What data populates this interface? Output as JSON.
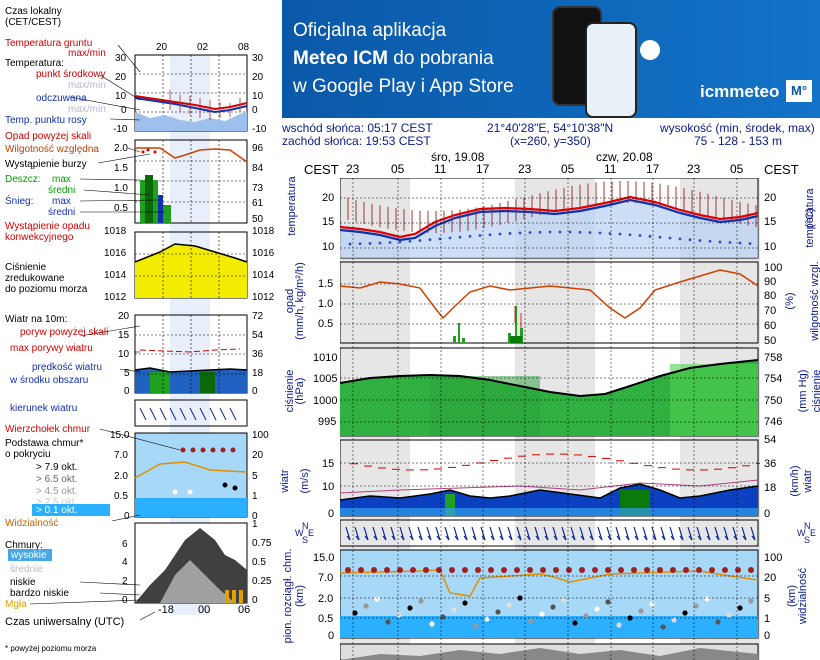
{
  "left": {
    "local_time": "Czas lokalny\n(CET/CEST)",
    "top_ticks": [
      "20",
      "02",
      "08"
    ],
    "soil_temp": "Temperatura gruntu",
    "max_min": "max/min",
    "temperature": "Temperatura:",
    "midpoint": "punkt środkowy",
    "max_min2": "max/min",
    "felt": "odczuwana",
    "max_min3": "max/min",
    "dew": "Temp. punktu rosy",
    "temp_ticks": [
      "30",
      "20",
      "10",
      "0",
      "-10"
    ],
    "precip_above": "Opad powyżej skali",
    "humidity": "Wilgotność względna",
    "storm": "Wystąpienie burzy",
    "rain": "Deszcz:",
    "rain_max": "max",
    "rain_mean": "średni",
    "snow": "Śnieg:",
    "snow_max": "max",
    "snow_mean": "średni",
    "precip_occ1": "Wystąpienie opadu",
    "precip_occ2": "konwekcyjnego",
    "precip_ticks": [
      "2.0",
      "1.5",
      "1.0",
      "0.5",
      "0"
    ],
    "hum_ticks": [
      "96",
      "84",
      "73",
      "61",
      "50"
    ],
    "pressure_lbl1": "Ciśnienie",
    "pressure_lbl2": "zredukowane",
    "pressure_lbl3": "do poziomu morza",
    "press_ticks_l": [
      "1018",
      "1016",
      "1014",
      "1012"
    ],
    "press_ticks_r": [
      "1018",
      "1016",
      "1014",
      "1012"
    ],
    "wind_lbl": "Wiatr na 10m:",
    "gust_above": "poryw powyżej skali",
    "gust_max": "max porywy wiatru",
    "wind_speed1": "prędkość wiatru",
    "wind_speed2": "w środku obszaru",
    "wind_ticks_l": [
      "20",
      "15",
      "10",
      "5",
      "0"
    ],
    "wind_ticks_r": [
      "72",
      "54",
      "36",
      "18",
      "0"
    ],
    "wind_dir": "kierunek wiatru",
    "cloud_top": "Wierzchołek chmur",
    "cloud_base1": "Podstawa chmur*",
    "cloud_base2": "o pokryciu",
    "okt": [
      "> 7.9 okt.",
      "> 6.5 okt.",
      "> 4.5 okt.",
      "> 2.5 okt.",
      "> 0.1 okt."
    ],
    "cloud_ticks_l": [
      "15.0",
      "7.0",
      "2.0",
      "0.5",
      "0"
    ],
    "cloud_ticks_r": [
      "100",
      "20",
      "5",
      "1",
      "0"
    ],
    "visibility": "Widzialność",
    "clouds": "Chmury:",
    "high": "wysokie",
    "mid": "średnie",
    "low": "niskie",
    "very_low": "bardzo niskie",
    "fog": "Mgła",
    "cl_ticks_l": [
      "6",
      "4",
      "2",
      "0"
    ],
    "cl_ticks_r": [
      "1",
      "0.75",
      "0.5",
      "0.25",
      "0"
    ],
    "bottom_ticks": [
      "18",
      "00",
      "06"
    ],
    "utc": "Czas uniwersalny (UTC)",
    "footnote": "* powyżej poziomu morza"
  },
  "banner": {
    "line1": "Oficjalna aplikacja",
    "line2a": "Meteo ICM",
    "line2b": " do pobrania",
    "line3": "w Google Play i App Store",
    "logo": "icmmeteo",
    "logo_badge": "M°"
  },
  "info": {
    "sunrise": "wschód słońca: 05:17 CEST",
    "sunset": "zachód słońca: 19:53 CEST",
    "coords": "21°40'28\"E, 54°10'38\"N",
    "grid": "(x=260,  y=350)",
    "height_lbl": "wysokość (min, środek, max)",
    "height_val": "75 - 128 - 153 m"
  },
  "main": {
    "tz": "CEST",
    "day1": "śro, 19.08",
    "day2": "czw, 20.08",
    "hours": [
      "23",
      "05",
      "11",
      "17",
      "23",
      "05",
      "11",
      "17",
      "23",
      "05"
    ],
    "temp_ticks": [
      "20",
      "15",
      "10"
    ],
    "temp_lbl": "temperatura",
    "temp_unit": "(°C)",
    "temp_lbl_r": "temperatura",
    "precip_ticks": [
      "1.5",
      "1.0",
      "0.5"
    ],
    "hum_ticks": [
      "100",
      "90",
      "80",
      "70",
      "60",
      "50"
    ],
    "precip_lbl": "opad",
    "precip_unit": "(mm/h, kg/m²/h)",
    "hum_unit": "(%)",
    "hum_lbl": "wilgotność wzgl.",
    "press_ticks": [
      "1010",
      "1005",
      "1000",
      "995"
    ],
    "press_ticks_r": [
      "758",
      "754",
      "750",
      "746"
    ],
    "press_lbl": "ciśnienie",
    "press_unit": "(hPa)",
    "press_unit_r": "(mm Hg)",
    "press_lbl_r": "ciśnienie",
    "wind_ticks": [
      "15",
      "10",
      "5",
      "0"
    ],
    "wind_ticks_r": [
      "54",
      "36",
      "18",
      "0"
    ],
    "wind_lbl": "wiatr",
    "wind_unit": "(m/s)",
    "wind_unit_r": "(km/h)",
    "wind_lbl_r": "wiatr",
    "cloud_ticks": [
      "15.0",
      "7.0",
      "2.0",
      "0.5",
      "0"
    ],
    "cloud_ticks_r": [
      "100",
      "20",
      "5",
      "1",
      "0"
    ],
    "cloud_lbl": "pion. rozciągł. chm.",
    "cloud_unit": "(km)",
    "vis_unit": "(km)",
    "vis_lbl": "widzialność",
    "compass": [
      "N",
      "W",
      "S",
      "E"
    ]
  },
  "colors": {
    "banner": "#0b58a8",
    "temp": "#d40000",
    "felt": "#1030b0",
    "humidity": "#d04000",
    "pressure_fill": "#2eb82e",
    "wind_fill": "#0b2fa0"
  }
}
